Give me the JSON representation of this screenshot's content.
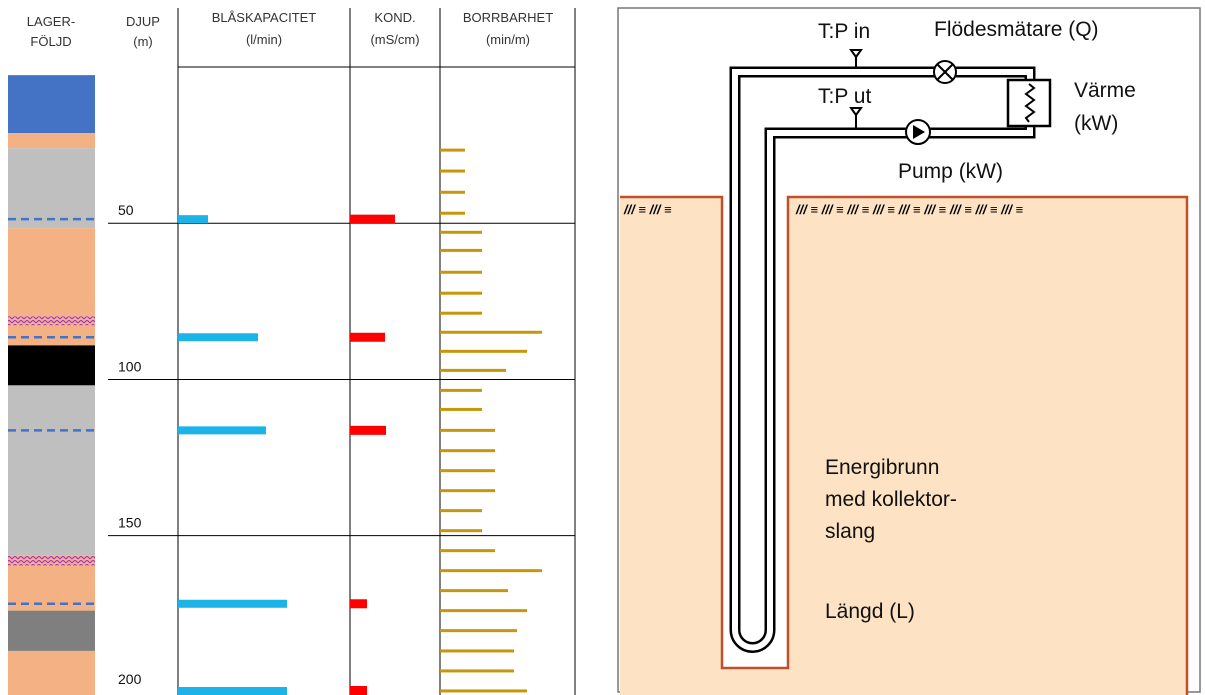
{
  "chart_data": {
    "type": "bar",
    "y_label": [
      "DJUP",
      "(m)"
    ],
    "strata_label": [
      "LAGER-",
      "FÖLJD"
    ],
    "ylim": [
      0,
      201
    ],
    "yticks": [
      50,
      100,
      150,
      200
    ],
    "grid": true,
    "layers": [
      {
        "top": 2.6,
        "bottom": 21.2,
        "color": "#4472c4"
      },
      {
        "top": 21.2,
        "bottom": 26.0,
        "color": "#f4b183"
      },
      {
        "top": 26.0,
        "bottom": 51.6,
        "color": "#bfbfbf"
      },
      {
        "top": 51.6,
        "bottom": 79.8,
        "color": "#f4b183"
      },
      {
        "top": 79.8,
        "bottom": 82.7,
        "color": "#e8a0d8"
      },
      {
        "top": 82.7,
        "bottom": 89.1,
        "color": "#f4b183"
      },
      {
        "top": 89.1,
        "bottom": 101.9,
        "color": "#000000"
      },
      {
        "top": 101.9,
        "bottom": 156.4,
        "color": "#bfbfbf"
      },
      {
        "top": 156.4,
        "bottom": 159.6,
        "color": "#e8a0d8"
      },
      {
        "top": 159.6,
        "bottom": 174.0,
        "color": "#f4b183"
      },
      {
        "top": 174.0,
        "bottom": 186.9,
        "color": "#7f7f7f"
      },
      {
        "top": 186.9,
        "bottom": 201,
        "color": "#f4b183"
      }
    ],
    "series": [
      {
        "name": "BLÅSKAPACITET",
        "unit": "(l/min)",
        "color": "#1cb4e8",
        "xlim": [
          0,
          172
        ],
        "depths": [
          48.7,
          86.5,
          116.3,
          171.8,
          200
        ],
        "values": [
          30,
          80,
          88,
          109,
          109
        ]
      },
      {
        "name": "KOND.",
        "unit": "(mS/cm)",
        "color": "#ff0000",
        "xlim": [
          0,
          90
        ],
        "depths": [
          48.7,
          86.5,
          116.3,
          171.8,
          200
        ],
        "values": [
          45,
          35,
          36,
          17,
          17
        ]
      },
      {
        "name": "BORRBARHET",
        "unit": "(min/m)",
        "color": "#c8960a",
        "xlim": [
          0,
          135
        ],
        "depths": [
          26.6,
          33.3,
          40.1,
          46.8,
          52.9,
          58.7,
          65.7,
          72.4,
          78.8,
          84.9,
          91.0,
          97.1,
          103.5,
          109.6,
          116.3,
          122.8,
          129.2,
          135.6,
          142.0,
          148.4,
          154.8,
          161.2,
          167.6,
          174.0,
          180.4,
          186.9,
          193.3,
          199.7
        ],
        "values": [
          25,
          25,
          25,
          25,
          42,
          42,
          42,
          42,
          42,
          102,
          87,
          66,
          42,
          42,
          55,
          55,
          55,
          55,
          42,
          42,
          55,
          102,
          68,
          87,
          77,
          74,
          74,
          87
        ]
      }
    ]
  },
  "diagram": {
    "tp_in": "T:P in",
    "flow_meter": "Flödesmätare (Q)",
    "tp_out": "T:P ut",
    "heat": [
      "Värme",
      "(kW)"
    ],
    "pump": "Pump (kW)",
    "well": [
      "Energibrunn",
      "med kollektor-",
      "slang"
    ],
    "length": "Längd (L)",
    "hatch_left": "/// ≡ /// ≡",
    "hatch_right": "/// ≡ /// ≡ ///  ≡ /// ≡ /// ≡ /// ≡ /// ≡ ///  ≡ /// ≡"
  }
}
